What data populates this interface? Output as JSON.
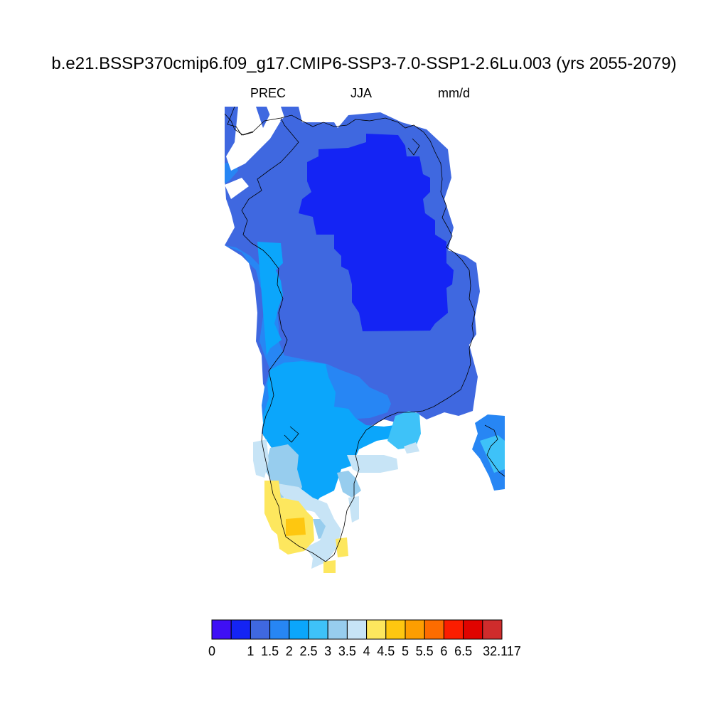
{
  "title": "b.e21.BSSP370cmip6.f09_g17.CMIP6-SSP3-7.0-SSP1-2.6Lu.003 (yrs 2055-2079)",
  "subtitle": {
    "variable": "PREC",
    "season": "JJA",
    "units": "mm/d"
  },
  "colorbar": {
    "colors": [
      "#3f0ff5",
      "#1424f4",
      "#3f68e0",
      "#2786f4",
      "#0ba6fb",
      "#3ec2f8",
      "#97cdee",
      "#c7e4f6",
      "#fde75e",
      "#fec710",
      "#fd9e01",
      "#fd6c00",
      "#fb1d00",
      "#e00300",
      "#cf2c2c"
    ],
    "labels": [
      "0",
      "",
      "1",
      "1.5",
      "2",
      "2.5",
      "3",
      "3.5",
      "4",
      "4.5",
      "5",
      "5.5",
      "6",
      "6.5",
      "32.117"
    ]
  },
  "map_data": {
    "region": "Greenland",
    "field": "PREC",
    "season": "JJA",
    "units": "mm/d",
    "pattern": "driest (below 1) over central-north ice sheet, 1-1.5 over most of the rest, 1.5-3.5 along the southwest coast, 4-5 at the southern tip"
  }
}
